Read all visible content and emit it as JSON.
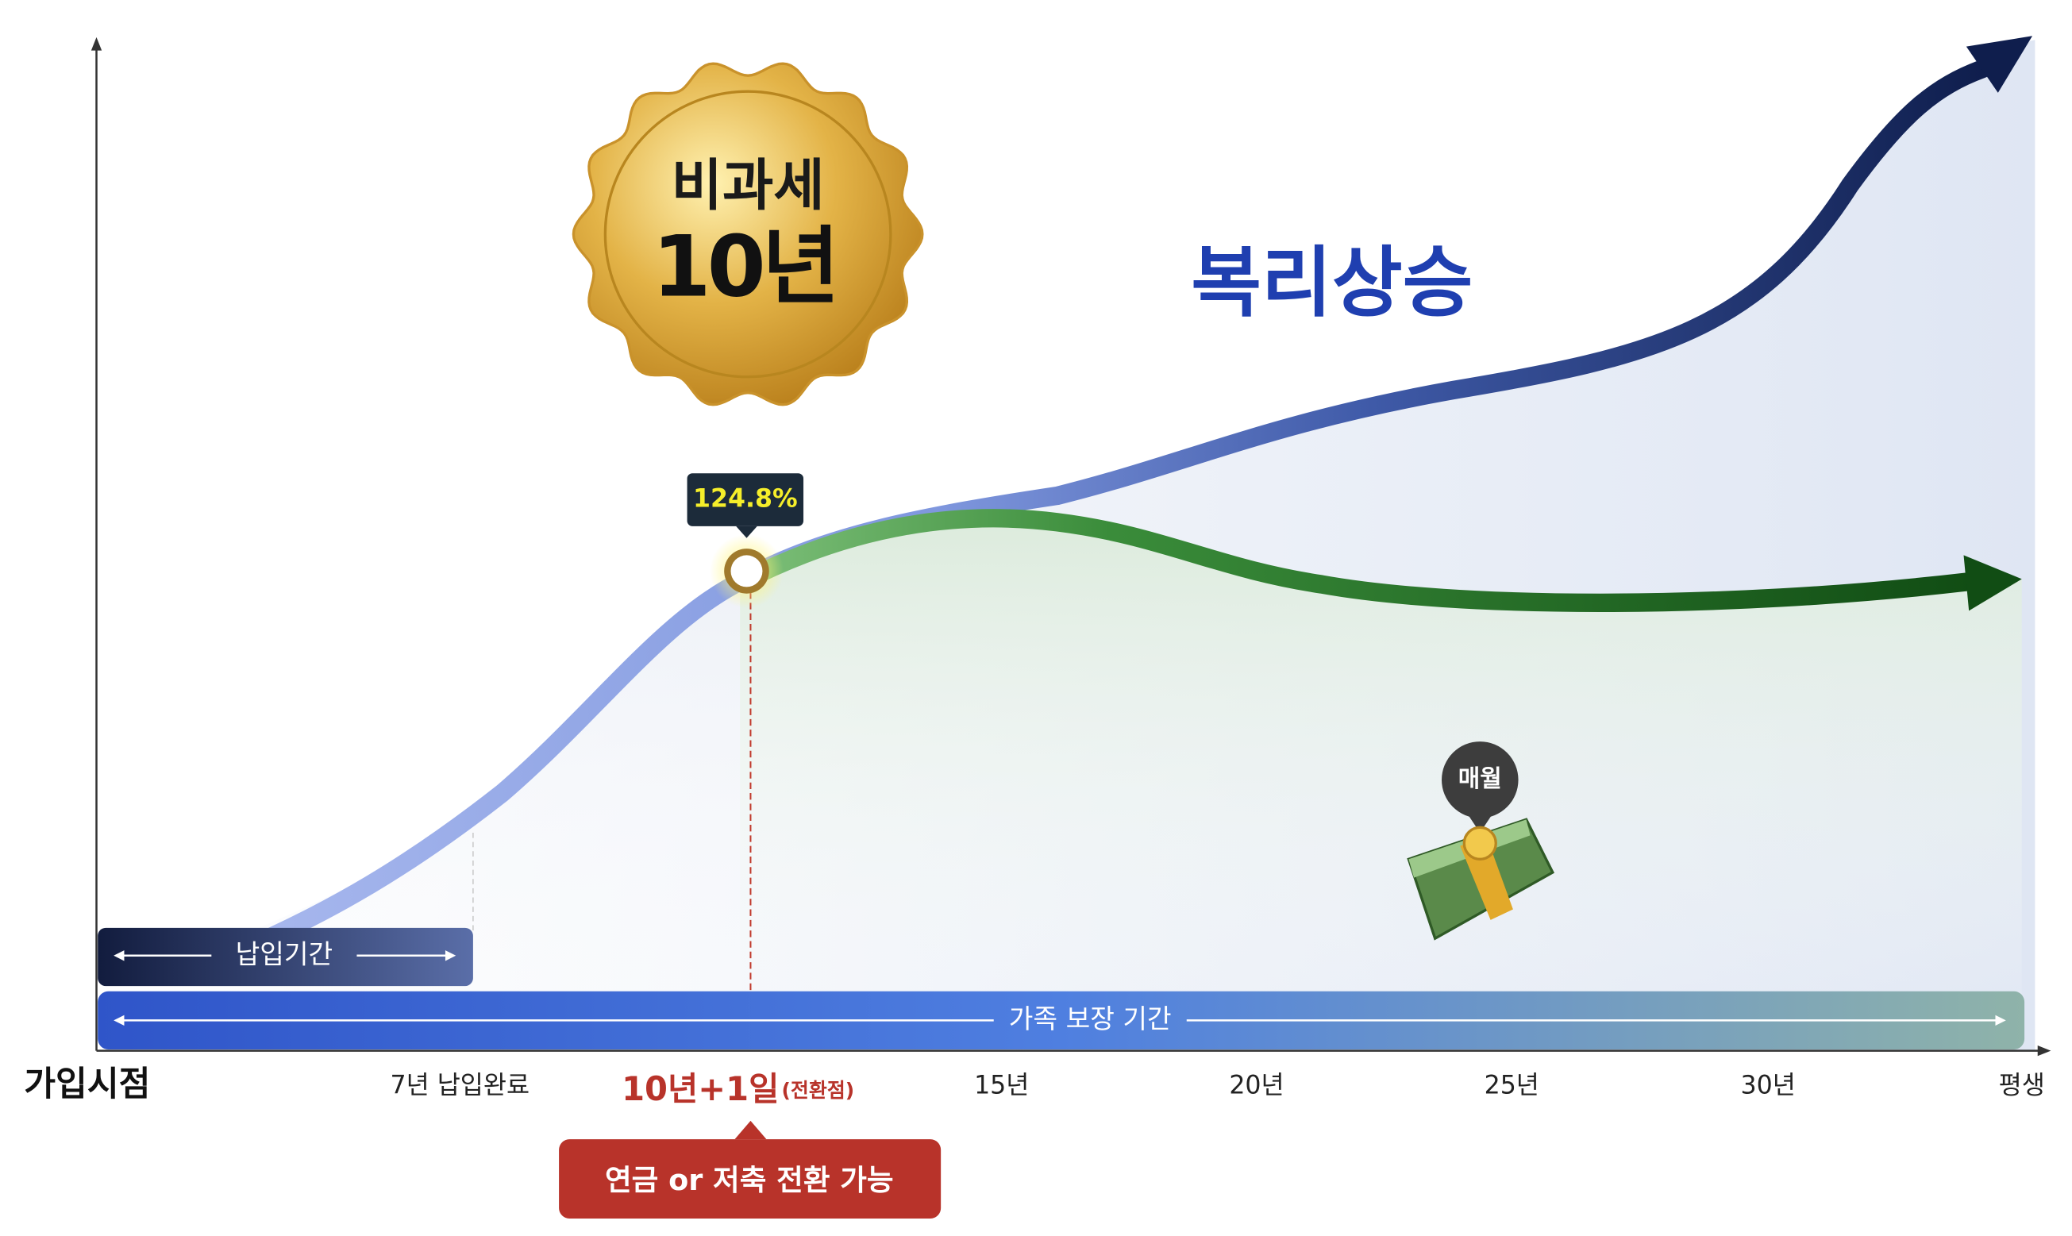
{
  "badge": {
    "line1": "비과세",
    "line2": "10년"
  },
  "headline": "복리상승",
  "point_label": "124.8%",
  "bubble": "매월",
  "payment_period": "납입기간",
  "coverage_period": "가족 보장 기간",
  "x_labels": [
    "가입시점",
    "7년 납입완료",
    "15년",
    "20년",
    "25년",
    "30년",
    "평생"
  ],
  "switch_point": {
    "main": "10년+1일",
    "sub": "(전환점)"
  },
  "callout": "연금 or 저축 전환 가능"
}
